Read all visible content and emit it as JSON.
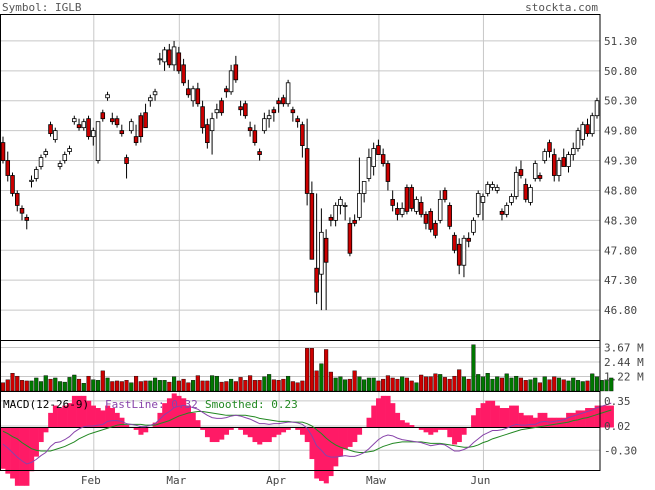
{
  "header": {
    "symbol_text": "Symbol: IGLB",
    "brand": "stockta.com"
  },
  "colors": {
    "up": "#ffffff",
    "down": "#cc0000",
    "vol_up": "#007700",
    "vol_down": "#cc0000",
    "grid": "#c8c8c8",
    "frame": "#000000",
    "macd_hist": "#ff1a66",
    "fast_line": "#8844aa",
    "smoothed_line": "#228822"
  },
  "chart_data": [
    {
      "type": "candlestick",
      "name": "price",
      "y_ticks": [
        "51.30",
        "50.80",
        "50.30",
        "49.80",
        "49.30",
        "48.80",
        "48.30",
        "47.80",
        "47.30",
        "46.80"
      ],
      "ylim": [
        46.3,
        51.75
      ],
      "x_labels": [
        "Feb",
        "Mar",
        "Apr",
        "Maw",
        "Jun"
      ],
      "candles": [
        [
          49.6,
          49.7,
          49.25,
          49.3
        ],
        [
          49.3,
          49.45,
          48.95,
          49.05
        ],
        [
          49.05,
          49.1,
          48.7,
          48.75
        ],
        [
          48.75,
          48.8,
          48.45,
          48.55
        ],
        [
          48.5,
          48.55,
          48.3,
          48.42
        ],
        [
          48.35,
          48.4,
          48.15,
          48.3
        ],
        [
          48.95,
          49.05,
          48.85,
          48.97
        ],
        [
          49.0,
          49.2,
          48.95,
          49.15
        ],
        [
          49.2,
          49.4,
          49.15,
          49.35
        ],
        [
          49.4,
          49.5,
          49.35,
          49.45
        ],
        [
          49.9,
          49.95,
          49.7,
          49.75
        ],
        [
          49.65,
          49.85,
          49.6,
          49.8
        ],
        [
          49.2,
          49.3,
          49.15,
          49.25
        ],
        [
          49.3,
          49.45,
          49.25,
          49.4
        ],
        [
          49.45,
          49.55,
          49.4,
          49.5
        ],
        [
          49.95,
          50.05,
          49.9,
          50.0
        ],
        [
          49.9,
          50.0,
          49.8,
          49.85
        ],
        [
          49.85,
          50.0,
          49.8,
          49.95
        ],
        [
          50.0,
          50.05,
          49.65,
          49.7
        ],
        [
          49.7,
          49.85,
          49.55,
          49.8
        ],
        [
          49.3,
          49.95,
          49.25,
          49.95
        ],
        [
          50.1,
          50.15,
          49.95,
          50.0
        ],
        [
          50.35,
          50.45,
          50.3,
          50.4
        ],
        [
          50.0,
          50.1,
          49.9,
          49.95
        ],
        [
          50.0,
          50.05,
          49.85,
          49.9
        ],
        [
          49.8,
          49.9,
          49.7,
          49.75
        ],
        [
          49.35,
          49.4,
          49.0,
          49.25
        ],
        [
          49.8,
          50.0,
          49.75,
          49.95
        ],
        [
          49.7,
          49.9,
          49.55,
          49.6
        ],
        [
          50.05,
          50.1,
          49.6,
          49.7
        ],
        [
          50.1,
          50.25,
          49.9,
          49.85
        ],
        [
          50.3,
          50.4,
          50.2,
          50.35
        ],
        [
          50.4,
          50.5,
          50.3,
          50.45
        ],
        [
          51.0,
          51.1,
          50.9,
          51.0
        ],
        [
          50.95,
          51.2,
          50.8,
          51.15
        ],
        [
          51.15,
          51.25,
          50.85,
          50.9
        ],
        [
          50.9,
          51.3,
          50.8,
          51.2
        ],
        [
          51.1,
          51.2,
          50.75,
          50.8
        ],
        [
          50.9,
          51.0,
          50.55,
          50.6
        ],
        [
          50.5,
          50.65,
          50.35,
          50.4
        ],
        [
          50.3,
          50.55,
          50.2,
          50.5
        ],
        [
          50.5,
          50.6,
          50.2,
          50.25
        ],
        [
          50.2,
          50.3,
          49.75,
          49.85
        ],
        [
          49.9,
          50.0,
          49.5,
          49.6
        ],
        [
          49.8,
          50.1,
          49.4,
          50.0
        ],
        [
          50.1,
          50.25,
          50.0,
          50.15
        ],
        [
          50.3,
          50.35,
          50.05,
          50.1
        ],
        [
          50.5,
          50.55,
          50.35,
          50.45
        ],
        [
          50.45,
          50.9,
          50.4,
          50.8
        ],
        [
          50.9,
          51.05,
          50.6,
          50.65
        ],
        [
          50.2,
          50.3,
          50.05,
          50.15
        ],
        [
          50.25,
          50.3,
          50.0,
          50.05
        ],
        [
          49.85,
          49.95,
          49.7,
          49.8
        ],
        [
          49.8,
          49.9,
          49.55,
          49.6
        ],
        [
          49.45,
          49.5,
          49.3,
          49.4
        ],
        [
          49.8,
          50.1,
          49.75,
          50.0
        ],
        [
          50.0,
          50.15,
          49.85,
          50.05
        ],
        [
          50.15,
          50.2,
          49.95,
          50.1
        ],
        [
          50.3,
          50.35,
          50.1,
          50.25
        ],
        [
          50.35,
          50.4,
          50.2,
          50.25
        ],
        [
          50.25,
          50.65,
          50.2,
          50.6
        ],
        [
          50.15,
          50.2,
          49.95,
          50.1
        ],
        [
          50.0,
          50.05,
          49.85,
          49.95
        ],
        [
          49.9,
          49.95,
          49.35,
          49.55
        ],
        [
          49.5,
          50.0,
          48.55,
          48.75
        ],
        [
          48.75,
          48.95,
          47.65,
          47.65
        ],
        [
          47.5,
          48.75,
          46.9,
          47.1
        ],
        [
          47.4,
          48.5,
          46.8,
          48.1
        ],
        [
          48.0,
          48.15,
          46.8,
          47.6
        ],
        [
          48.35,
          48.4,
          48.2,
          48.3
        ],
        [
          48.3,
          48.6,
          48.2,
          48.55
        ],
        [
          48.55,
          48.7,
          48.4,
          48.65
        ],
        [
          48.55,
          48.6,
          48.3,
          48.55
        ],
        [
          48.25,
          48.35,
          47.7,
          47.75
        ],
        [
          48.3,
          48.4,
          48.2,
          48.25
        ],
        [
          48.35,
          49.35,
          48.3,
          48.75
        ],
        [
          48.75,
          48.95,
          48.6,
          48.95
        ],
        [
          49.0,
          49.5,
          48.95,
          49.35
        ],
        [
          49.2,
          49.6,
          49.05,
          49.5
        ],
        [
          49.55,
          49.65,
          49.4,
          49.4
        ],
        [
          49.4,
          49.5,
          49.2,
          49.25
        ],
        [
          49.25,
          49.3,
          48.8,
          48.95
        ],
        [
          48.65,
          48.8,
          48.45,
          48.55
        ],
        [
          48.5,
          48.6,
          48.3,
          48.4
        ],
        [
          48.4,
          48.6,
          48.35,
          48.5
        ],
        [
          48.85,
          48.9,
          48.4,
          48.45
        ],
        [
          48.85,
          48.9,
          48.45,
          48.5
        ],
        [
          48.45,
          48.7,
          48.4,
          48.65
        ],
        [
          48.6,
          48.7,
          48.35,
          48.4
        ],
        [
          48.4,
          48.45,
          48.15,
          48.25
        ],
        [
          48.45,
          48.5,
          48.1,
          48.15
        ],
        [
          48.25,
          48.3,
          48.0,
          48.05
        ],
        [
          48.3,
          48.8,
          48.25,
          48.65
        ],
        [
          48.8,
          48.85,
          48.6,
          48.65
        ],
        [
          48.55,
          48.6,
          48.15,
          48.2
        ],
        [
          48.05,
          48.1,
          47.75,
          47.8
        ],
        [
          47.9,
          48.0,
          47.4,
          47.55
        ],
        [
          47.55,
          48.05,
          47.35,
          48.0
        ],
        [
          48.0,
          48.1,
          47.85,
          47.95
        ],
        [
          48.1,
          48.35,
          48.05,
          48.3
        ],
        [
          48.4,
          48.8,
          48.35,
          48.75
        ],
        [
          48.6,
          48.75,
          48.3,
          48.7
        ],
        [
          48.75,
          48.95,
          48.7,
          48.9
        ],
        [
          48.85,
          48.95,
          48.8,
          48.9
        ],
        [
          48.8,
          48.9,
          48.75,
          48.85
        ],
        [
          48.45,
          48.5,
          48.3,
          48.4
        ],
        [
          48.4,
          48.6,
          48.35,
          48.55
        ],
        [
          48.6,
          48.75,
          48.55,
          48.7
        ],
        [
          48.7,
          49.2,
          48.65,
          49.1
        ],
        [
          49.15,
          49.3,
          49.0,
          49.05
        ],
        [
          48.9,
          49.0,
          48.6,
          48.65
        ],
        [
          48.6,
          48.9,
          48.55,
          48.85
        ],
        [
          49.0,
          49.3,
          48.95,
          49.25
        ],
        [
          49.05,
          49.1,
          48.95,
          49.0
        ],
        [
          49.3,
          49.5,
          49.25,
          49.45
        ],
        [
          49.6,
          49.65,
          49.35,
          49.45
        ],
        [
          49.4,
          49.5,
          48.95,
          49.05
        ],
        [
          49.05,
          49.35,
          48.95,
          49.3
        ],
        [
          49.35,
          49.5,
          49.2,
          49.2
        ],
        [
          49.2,
          49.45,
          49.1,
          49.4
        ],
        [
          49.4,
          49.6,
          49.3,
          49.5
        ],
        [
          49.5,
          49.85,
          49.45,
          49.8
        ],
        [
          49.65,
          49.95,
          49.55,
          49.9
        ],
        [
          49.9,
          50.0,
          49.7,
          49.75
        ],
        [
          49.75,
          50.1,
          49.7,
          50.05
        ],
        [
          50.05,
          50.35,
          50.0,
          50.3
        ]
      ]
    },
    {
      "type": "bar",
      "name": "volume",
      "y_ticks": [
        "3.67 M",
        "2.44 M",
        "1.22 M"
      ],
      "ylim": [
        0,
        4.3
      ],
      "values": [
        0.7,
        0.95,
        1.5,
        1.25,
        0.9,
        0.85,
        0.85,
        1.1,
        0.8,
        1.3,
        1.0,
        1.1,
        0.8,
        0.75,
        1.15,
        1.35,
        1.0,
        0.65,
        1.25,
        0.95,
        0.9,
        1.7,
        1.1,
        0.8,
        0.85,
        0.8,
        0.9,
        0.7,
        1.25,
        0.8,
        0.85,
        0.85,
        1.1,
        0.9,
        0.9,
        0.75,
        1.2,
        0.85,
        1.0,
        0.7,
        0.9,
        1.3,
        0.85,
        0.85,
        1.3,
        1.25,
        0.75,
        0.8,
        1.0,
        0.8,
        1.15,
        0.9,
        1.3,
        0.9,
        0.9,
        1.2,
        1.4,
        0.95,
        0.9,
        1.0,
        1.25,
        0.8,
        0.7,
        0.85,
        3.6,
        3.6,
        1.7,
        2.3,
        3.5,
        1.6,
        1.1,
        1.2,
        0.95,
        1.0,
        1.7,
        1.2,
        0.95,
        1.1,
        1.1,
        0.85,
        1.0,
        1.3,
        1.1,
        1.0,
        1.2,
        1.1,
        0.85,
        0.7,
        1.35,
        1.2,
        1.2,
        1.45,
        1.4,
        1.15,
        1.0,
        1.25,
        1.8,
        1.2,
        1.0,
        3.9,
        1.4,
        1.2,
        1.5,
        1.0,
        1.2,
        1.1,
        1.45,
        1.1,
        1.25,
        1.1,
        0.9,
        0.95,
        1.1,
        0.7,
        1.2,
        0.95,
        1.2,
        1.1,
        0.95,
        0.85,
        1.1,
        0.9,
        0.8,
        0.85,
        1.45,
        1.2,
        0.9,
        0.95,
        1.1
      ]
    },
    {
      "type": "line",
      "name": "macd",
      "title": "MACD(12-26-9)",
      "fast_label": "FastLine: 0.32",
      "smoothed_label": "Smoothed: 0.23",
      "y_ticks": [
        "0.35",
        "0.02",
        "-0.30"
      ],
      "ylim": [
        -0.56,
        0.48
      ],
      "fast_line": [
        -0.22,
        -0.27,
        -0.33,
        -0.39,
        -0.44,
        -0.48,
        -0.46,
        -0.42,
        -0.37,
        -0.33,
        -0.25,
        -0.2,
        -0.19,
        -0.16,
        -0.12,
        -0.06,
        -0.02,
        0.01,
        0.02,
        0.02,
        0.03,
        0.04,
        0.08,
        0.09,
        0.09,
        0.08,
        0.05,
        0.04,
        0.03,
        0.01,
        0.01,
        0.03,
        0.05,
        0.11,
        0.17,
        0.21,
        0.26,
        0.28,
        0.29,
        0.28,
        0.26,
        0.24,
        0.2,
        0.16,
        0.13,
        0.12,
        0.12,
        0.13,
        0.15,
        0.16,
        0.15,
        0.13,
        0.11,
        0.08,
        0.05,
        0.05,
        0.04,
        0.05,
        0.05,
        0.06,
        0.07,
        0.07,
        0.06,
        0.04,
        -0.01,
        -0.11,
        -0.24,
        -0.3,
        -0.37,
        -0.39,
        -0.39,
        -0.38,
        -0.37,
        -0.38,
        -0.38,
        -0.36,
        -0.33,
        -0.28,
        -0.22,
        -0.16,
        -0.12,
        -0.1,
        -0.11,
        -0.14,
        -0.16,
        -0.17,
        -0.18,
        -0.19,
        -0.2,
        -0.22,
        -0.24,
        -0.23,
        -0.22,
        -0.23,
        -0.27,
        -0.31,
        -0.31,
        -0.29,
        -0.26,
        -0.2,
        -0.15,
        -0.1,
        -0.07,
        -0.04,
        -0.04,
        -0.03,
        -0.01,
        0.02,
        0.04,
        0.03,
        0.03,
        0.04,
        0.04,
        0.07,
        0.08,
        0.07,
        0.08,
        0.09,
        0.1,
        0.13,
        0.15,
        0.17,
        0.19,
        0.21,
        0.23,
        0.26,
        0.28,
        0.3,
        0.32
      ],
      "smoothed_line": [
        -0.05,
        -0.08,
        -0.12,
        -0.15,
        -0.2,
        -0.24,
        -0.28,
        -0.3,
        -0.31,
        -0.31,
        -0.31,
        -0.29,
        -0.27,
        -0.25,
        -0.22,
        -0.19,
        -0.15,
        -0.12,
        -0.09,
        -0.07,
        -0.05,
        -0.03,
        -0.01,
        0.01,
        0.03,
        0.04,
        0.04,
        0.04,
        0.04,
        0.04,
        0.03,
        0.03,
        0.03,
        0.05,
        0.07,
        0.09,
        0.12,
        0.15,
        0.17,
        0.19,
        0.2,
        0.21,
        0.21,
        0.2,
        0.19,
        0.18,
        0.17,
        0.16,
        0.16,
        0.16,
        0.16,
        0.16,
        0.15,
        0.14,
        0.12,
        0.11,
        0.1,
        0.09,
        0.08,
        0.08,
        0.08,
        0.07,
        0.07,
        0.07,
        0.05,
        0.02,
        -0.03,
        -0.08,
        -0.14,
        -0.19,
        -0.23,
        -0.26,
        -0.28,
        -0.3,
        -0.32,
        -0.33,
        -0.33,
        -0.32,
        -0.31,
        -0.28,
        -0.25,
        -0.23,
        -0.21,
        -0.2,
        -0.19,
        -0.19,
        -0.19,
        -0.19,
        -0.19,
        -0.2,
        -0.21,
        -0.21,
        -0.21,
        -0.22,
        -0.23,
        -0.24,
        -0.25,
        -0.26,
        -0.26,
        -0.25,
        -0.23,
        -0.2,
        -0.18,
        -0.15,
        -0.13,
        -0.11,
        -0.09,
        -0.07,
        -0.05,
        -0.03,
        -0.02,
        -0.01,
        0.0,
        0.01,
        0.02,
        0.03,
        0.04,
        0.05,
        0.06,
        0.07,
        0.09,
        0.1,
        0.12,
        0.13,
        0.15,
        0.17,
        0.19,
        0.21,
        0.23
      ]
    }
  ]
}
